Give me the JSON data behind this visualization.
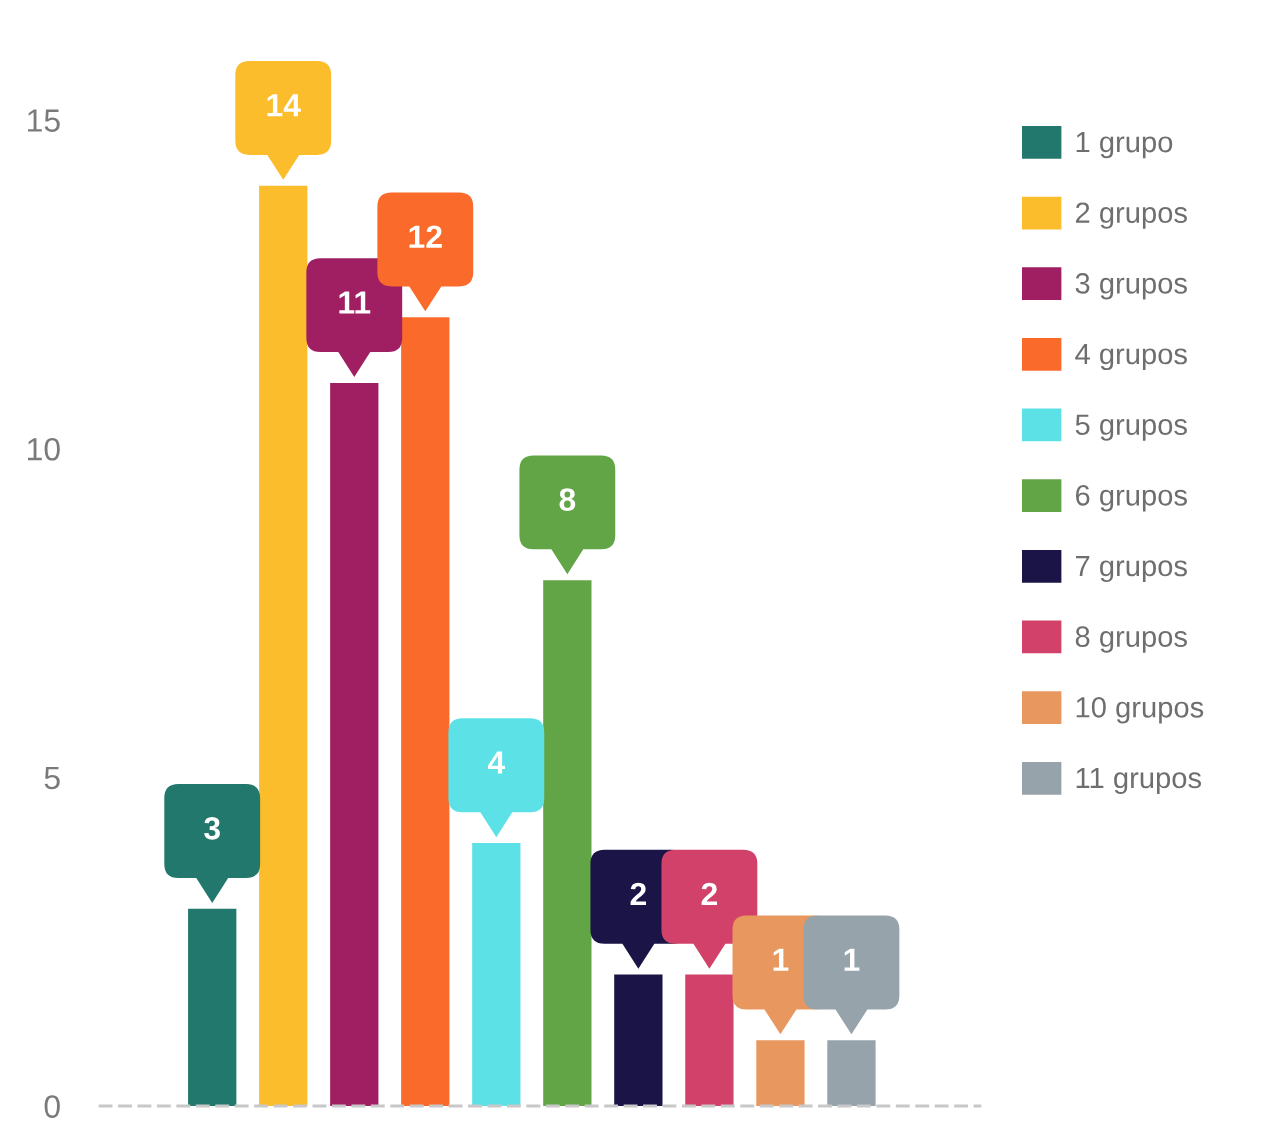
{
  "chart_data": {
    "type": "bar",
    "categories": [
      null
    ],
    "series": [
      {
        "name": "1 grupo",
        "color": "#23786d",
        "values": [
          3
        ]
      },
      {
        "name": "2 grupos",
        "color": "#fbbd2c",
        "values": [
          14
        ]
      },
      {
        "name": "3 grupos",
        "color": "#a01f62",
        "values": [
          11
        ]
      },
      {
        "name": "4 grupos",
        "color": "#fa6a2a",
        "values": [
          12
        ]
      },
      {
        "name": "5 grupos",
        "color": "#5ce1e6",
        "values": [
          4
        ]
      },
      {
        "name": "6 grupos",
        "color": "#62a546",
        "values": [
          8
        ]
      },
      {
        "name": "7 grupos",
        "color": "#1b1446",
        "values": [
          2
        ]
      },
      {
        "name": "8 grupos",
        "color": "#d2416a",
        "values": [
          2
        ]
      },
      {
        "name": "10 grupos",
        "color": "#e8975f",
        "values": [
          1
        ]
      },
      {
        "name": "11 grupos",
        "color": "#97a3aa",
        "values": [
          1
        ]
      }
    ],
    "ylim": [
      0,
      15
    ],
    "yticks": [
      0,
      5,
      10,
      15
    ],
    "tick_labels": "y",
    "data_labels": true,
    "legend": "right"
  }
}
